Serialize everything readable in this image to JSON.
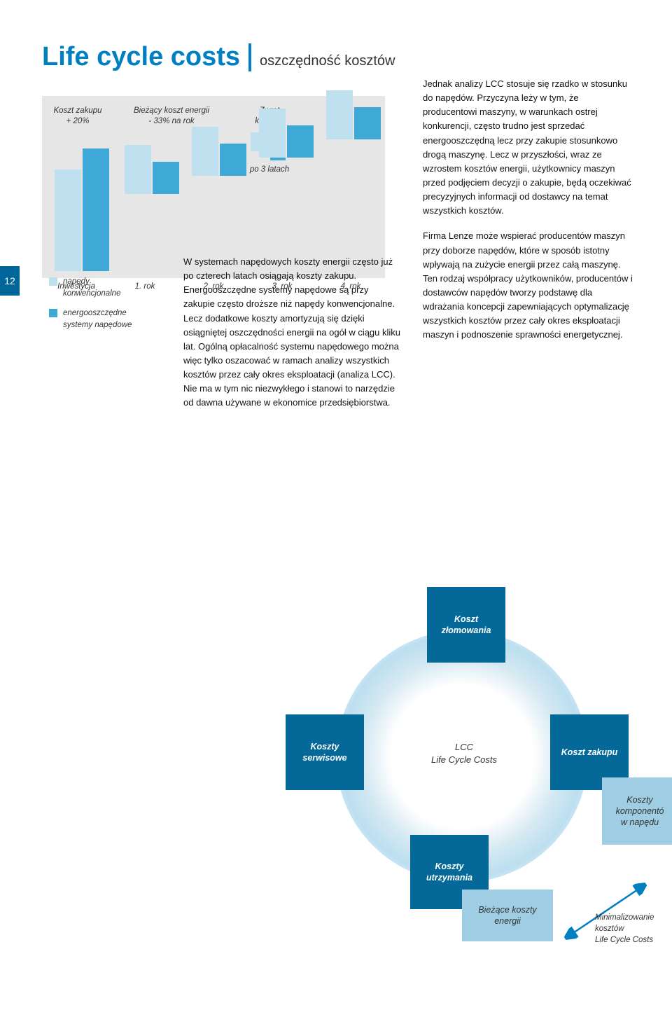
{
  "page_number": "12",
  "title": {
    "main": "Life cycle costs",
    "sub": "oszczędność kosztów"
  },
  "chart": {
    "background": "#e6e6e6",
    "bar_light_color": "#bfe0ef",
    "bar_dark_color": "#3ea9d6",
    "labels": {
      "koszt_zakupu": "Koszt zakupu\n+ 20%",
      "biezacy": "Bieżący koszt energii\n- 33% na rok",
      "zwrot": "Zwrot\nkosztów",
      "po3": "po 3 latach"
    },
    "bars": {
      "inwestycja_light": 145,
      "inwestycja_dark": 175,
      "r1_light": 70,
      "r1_dark": 46,
      "r2_light": 70,
      "r2_dark": 46,
      "r3_light": 70,
      "r3_dark": 46,
      "r4_light": 70,
      "r4_dark": 46
    },
    "zwrot_bars": {
      "left_h": 27,
      "right_h": 40
    },
    "x_axis": [
      "Inwestycja",
      "1. rok",
      "2. rok",
      "3. rok",
      "4. rok"
    ]
  },
  "legend": {
    "conventional": "napędy\nkonwencjonalne",
    "efficient": "energooszczędne\nsystemy napędowe"
  },
  "body": {
    "mid": "W systemach napędowych koszty energii często już po czterech latach osiągają koszty zakupu. Energooszczędne systemy napędowe są przy zakupie często droższe niż napędy konwencjonalne. Lecz dodatkowe koszty amortyzują się dzięki osiągniętej oszczędności energii na ogół w ciągu kliku lat. Ogólną opłacalność systemu napędowego można więc tylko oszacować w ramach analizy wszystkich kosztów przez cały okres eksploatacji (analiza LCC). Nie ma w tym nic niezwykłego i stanowi to narzędzie od dawna używane w ekonomice przedsiębiorstwa.",
    "right1": "Jednak analizy LCC stosuje się rzadko w stosunku do napędów. Przyczyna leży w tym, że producentowi maszyny, w warunkach ostrej konkurencji, często trudno jest sprzedać energooszczędną lecz przy zakupie stosunkowo drogą maszynę. Lecz w przyszłości, wraz ze wzrostem kosztów energii, użytkownicy maszyn przed podjęciem decyzji o zakupie, będą oczekiwać precyzyjnych informacji od dostawcy na temat wszystkich kosztów.",
    "right2": "Firma Lenze może wspierać producentów maszyn przy doborze napędów, które w sposób istotny wpływają na zużycie energii przez całą maszynę. Ten rodzaj współpracy użytkowników, producentów i dostawców napędów tworzy podstawę dla wdrażania koncepcji zapewniających optymalizację wszystkich kosztów przez cały okres eksploatacji maszyn i podnoszenie sprawności energetycznej."
  },
  "diagram": {
    "center": "LCC\nLife Cycle Costs",
    "nodes": {
      "zlomowania": "Koszt\nzłomowania",
      "serwisowe": "Koszty\nserwisowe",
      "zakupu": "Koszt zakupu",
      "utrzymania": "Koszty\nutrzymania",
      "komponentow": "Koszty\nkomponentó\nw napędu",
      "biezace": "Bieżące koszty\nenergii"
    },
    "min_label": "Minimalizowanie\nkosztów\nLife Cycle Costs",
    "colors": {
      "dark": "#046999",
      "light": "#9ecde4",
      "arrow": "#0080c0"
    }
  }
}
